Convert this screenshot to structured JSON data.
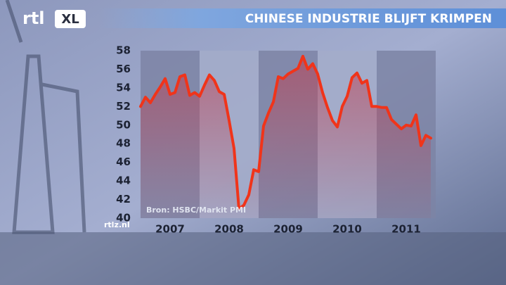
{
  "logo": "rtl",
  "logo_badge": "XL",
  "footer": "rtlz.nl",
  "chart_data": {
    "type": "line",
    "title": "CHINESE INDUSTRIE BLIJFT KRIMPEN",
    "source": "Bron: HSBC/Markit PMI",
    "x": [
      2007.0,
      2007.083,
      2007.167,
      2007.25,
      2007.333,
      2007.417,
      2007.5,
      2007.583,
      2007.667,
      2007.75,
      2007.833,
      2007.917,
      2008.0,
      2008.083,
      2008.167,
      2008.25,
      2008.333,
      2008.417,
      2008.5,
      2008.583,
      2008.667,
      2008.75,
      2008.833,
      2008.917,
      2009.0,
      2009.083,
      2009.167,
      2009.25,
      2009.333,
      2009.417,
      2009.5,
      2009.583,
      2009.667,
      2009.75,
      2009.833,
      2009.917,
      2010.0,
      2010.083,
      2010.167,
      2010.25,
      2010.333,
      2010.417,
      2010.5,
      2010.583,
      2010.667,
      2010.75,
      2010.833,
      2010.917,
      2011.0,
      2011.083,
      2011.167,
      2011.25,
      2011.333,
      2011.417,
      2011.5,
      2011.583,
      2011.667,
      2011.75,
      2011.833,
      2011.917
    ],
    "series": [
      {
        "name": "PMI",
        "color": "#f0341a",
        "values": [
          52.0,
          53.0,
          52.4,
          53.3,
          54.1,
          55.0,
          53.3,
          53.5,
          55.2,
          55.4,
          53.2,
          53.5,
          53.1,
          54.3,
          55.4,
          54.8,
          53.6,
          53.3,
          50.5,
          47.5,
          41.0,
          41.4,
          42.5,
          45.2,
          45.0,
          49.9,
          51.3,
          52.5,
          55.2,
          55.0,
          55.5,
          55.8,
          56.1,
          57.4,
          56.0,
          56.6,
          55.5,
          53.5,
          51.9,
          50.5,
          49.8,
          52.0,
          53.1,
          55.1,
          55.6,
          54.5,
          54.8,
          52.0,
          52.0,
          51.9,
          51.9,
          50.6,
          50.1,
          49.6,
          50.0,
          49.9,
          51.1,
          47.8,
          48.9,
          48.6
        ]
      }
    ],
    "xlim": [
      2007,
      2012
    ],
    "xticks": [
      {
        "value": 2007,
        "label": "2007"
      },
      {
        "value": 2008,
        "label": "2008"
      },
      {
        "value": 2009,
        "label": "2009"
      },
      {
        "value": 2010,
        "label": "2010"
      },
      {
        "value": 2011,
        "label": "2011"
      }
    ],
    "ylim": [
      40,
      58
    ],
    "yticks": [
      40,
      42,
      44,
      46,
      48,
      50,
      52,
      54,
      56,
      58
    ]
  }
}
